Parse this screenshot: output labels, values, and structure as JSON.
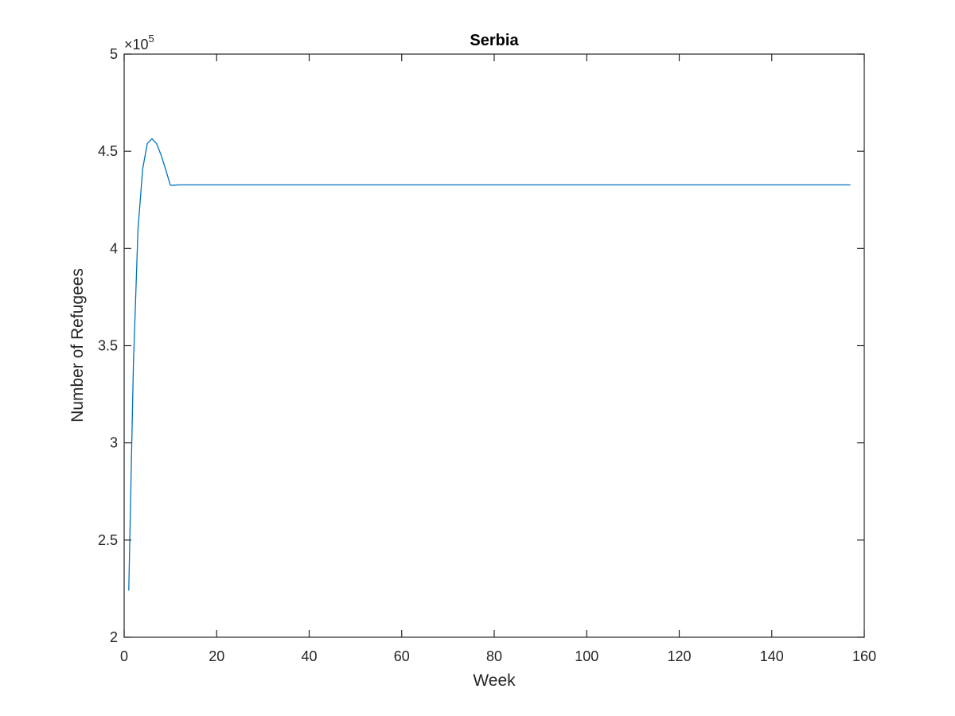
{
  "chart_data": {
    "type": "line",
    "title": "Serbia",
    "xlabel": "Week",
    "ylabel": "Number of Refugees",
    "y_exponent_prefix": "×10",
    "y_exponent_power": "5",
    "xlim": [
      0,
      160
    ],
    "ylim": [
      200000,
      500000
    ],
    "xticks": [
      0,
      20,
      40,
      60,
      80,
      100,
      120,
      140,
      160
    ],
    "xtick_labels": [
      "0",
      "20",
      "40",
      "60",
      "80",
      "100",
      "120",
      "140",
      "160"
    ],
    "yticks": [
      200000,
      250000,
      300000,
      350000,
      400000,
      450000,
      500000
    ],
    "ytick_labels": [
      "2",
      "2.5",
      "3",
      "3.5",
      "4",
      "4.5",
      "5"
    ],
    "grid": false,
    "series": [
      {
        "color": "#0072BD",
        "x": [
          1,
          2,
          3,
          4,
          5,
          6,
          7,
          8,
          9,
          10,
          11,
          12,
          13,
          14,
          15,
          20,
          40,
          60,
          80,
          100,
          120,
          140,
          157
        ],
        "y": [
          224000,
          340000,
          410000,
          441000,
          454000,
          456500,
          454000,
          448000,
          440500,
          432500,
          432600,
          432700,
          432700,
          432700,
          432700,
          432700,
          432700,
          432700,
          432700,
          432700,
          432700,
          432700,
          432700
        ]
      }
    ]
  }
}
